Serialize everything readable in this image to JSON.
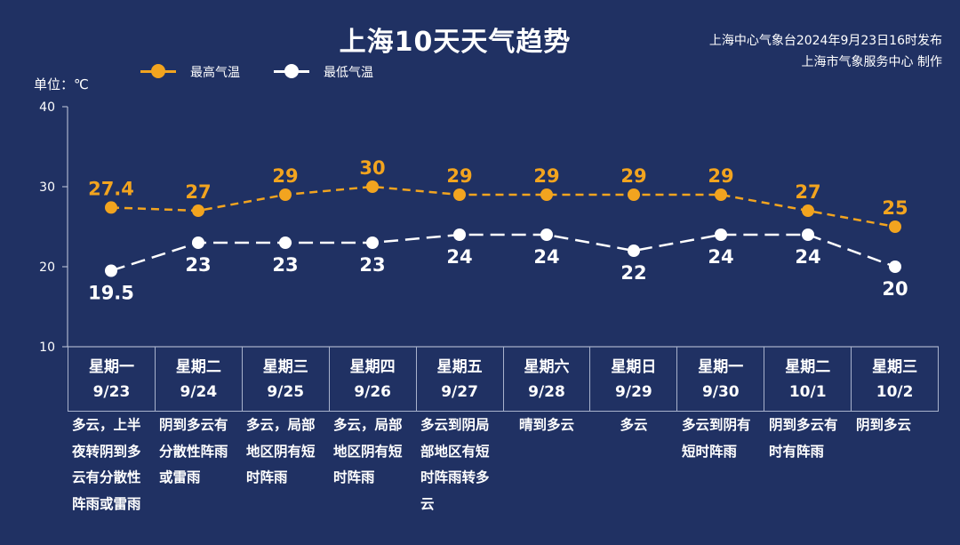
{
  "title": "上海10天天气趋势",
  "credit": {
    "line1": "上海中心气象台2024年9月23日16时发布",
    "line2": "上海市气象服务中心 制作"
  },
  "unit_label": "单位：℃",
  "colors": {
    "background": "#203163",
    "high": "#f2a41f",
    "low": "#ffffff"
  },
  "legend": [
    {
      "label": "最高气温",
      "color": "#f2a41f"
    },
    {
      "label": "最低气温",
      "color": "#ffffff"
    }
  ],
  "chart_data": {
    "type": "line",
    "title": "上海10天天气趋势",
    "ylabel": "单位：℃",
    "ylim": [
      10,
      40
    ],
    "yticks": [
      10,
      20,
      30,
      40
    ],
    "grid": false,
    "legend_position": "top-left",
    "line_style": "dashed",
    "categories": [
      "9/23",
      "9/24",
      "9/25",
      "9/26",
      "9/27",
      "9/28",
      "9/29",
      "9/30",
      "10/1",
      "10/2"
    ],
    "series": [
      {
        "name": "最高气温",
        "values": [
          27.4,
          27,
          29,
          30,
          29,
          29,
          29,
          29,
          27,
          25
        ],
        "labels": [
          "27.4",
          "27",
          "29",
          "30",
          "29",
          "29",
          "29",
          "29",
          "27",
          "25"
        ]
      },
      {
        "name": "最低气温",
        "values": [
          19.5,
          23,
          23,
          23,
          24,
          24,
          22,
          24,
          24,
          20
        ],
        "labels": [
          "19.5",
          "23",
          "23",
          "23",
          "24",
          "24",
          "22",
          "24",
          "24",
          "20"
        ]
      }
    ]
  },
  "days": [
    {
      "weekday": "星期一",
      "date": "9/23",
      "desc": "多云，上半夜转阴到多云有分散性阵雨或雷雨"
    },
    {
      "weekday": "星期二",
      "date": "9/24",
      "desc": "阴到多云有分散性阵雨或雷雨"
    },
    {
      "weekday": "星期三",
      "date": "9/25",
      "desc": "多云，局部地区阴有短时阵雨"
    },
    {
      "weekday": "星期四",
      "date": "9/26",
      "desc": "多云，局部地区阴有短时阵雨"
    },
    {
      "weekday": "星期五",
      "date": "9/27",
      "desc": "多云到阴局部地区有短时阵雨转多云"
    },
    {
      "weekday": "星期六",
      "date": "9/28",
      "desc": "晴到多云"
    },
    {
      "weekday": "星期日",
      "date": "9/29",
      "desc": "多云"
    },
    {
      "weekday": "星期一",
      "date": "9/30",
      "desc": "多云到阴有短时阵雨"
    },
    {
      "weekday": "星期二",
      "date": "10/1",
      "desc": "阴到多云有时有阵雨"
    },
    {
      "weekday": "星期三",
      "date": "10/2",
      "desc": "阴到多云"
    }
  ]
}
